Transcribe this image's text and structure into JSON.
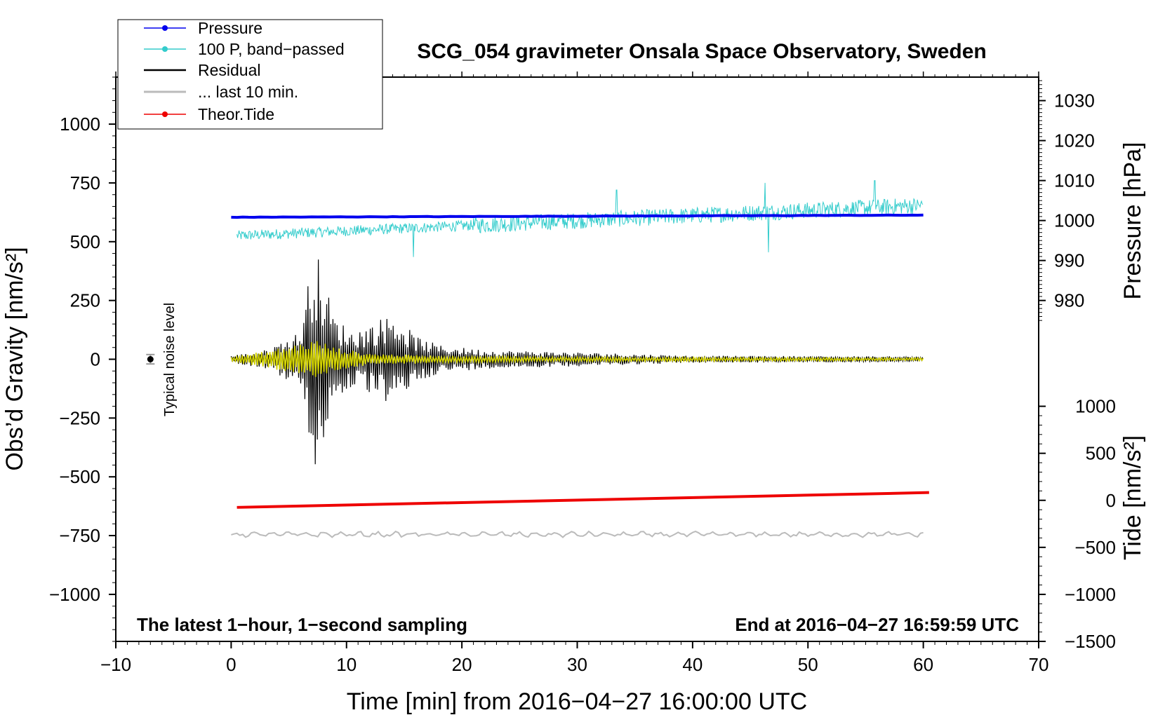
{
  "chart_data": {
    "type": "line",
    "title": "SCG_054 gravimeter Onsala Space Observatory, Sweden",
    "xlabel": "Time [min] from 2016−04−27 16:00:00 UTC",
    "ylabel_left": "Obs’d Gravity [nm/s²]",
    "ylabel_right_top": "Pressure [hPa]",
    "ylabel_right_bottom": "Tide [nm/s²]",
    "xlim": [
      -10,
      70
    ],
    "ylim": [
      -1200,
      1200
    ],
    "x_ticks": [
      -10,
      0,
      10,
      20,
      30,
      40,
      50,
      60,
      70
    ],
    "x_tick_labels": [
      "−10",
      "0",
      "10",
      "20",
      "30",
      "40",
      "50",
      "60",
      "70"
    ],
    "y_ticks": [
      1000,
      750,
      500,
      250,
      0,
      -250,
      -500,
      -750,
      -1000
    ],
    "y_tick_labels": [
      "1000",
      "750",
      "500",
      "250",
      "0",
      "−250",
      "−500",
      "−750",
      "−1000"
    ],
    "pressure_axis": {
      "ticks": [
        1030,
        1020,
        1010,
        1000,
        990,
        980
      ],
      "tick_labels": [
        "1030",
        "1020",
        "1010",
        "1000",
        "990",
        "980"
      ],
      "mapping": {
        "hPa_a": 980,
        "grav_a": 250,
        "hPa_b": 1030,
        "grav_b": 1100
      }
    },
    "tide_axis": {
      "ticks": [
        1000,
        500,
        0,
        -500,
        -1000,
        -1500
      ],
      "tick_labels": [
        "1000",
        "500",
        "0",
        "−500",
        "−1000",
        "−1500"
      ],
      "mapping": {
        "tide_a": 1000,
        "grav_a": -200,
        "tide_b": -1500,
        "grav_b": -1200
      }
    },
    "legend": {
      "placement": "top-left",
      "entries": [
        {
          "label": "Pressure",
          "color": "#0000ee",
          "marker": true
        },
        {
          "label": "100 P, band−passed",
          "color": "#33cccc",
          "marker": true
        },
        {
          "label": "Residual",
          "color": "#000000",
          "marker": false
        },
        {
          "label": "... last 10 min.",
          "color": "#bbbbbb",
          "marker": false
        },
        {
          "label": "Theor.Tide",
          "color": "#ee0000",
          "marker": true
        }
      ]
    },
    "annotations": {
      "bottom_left": "The latest 1−hour, 1−second sampling",
      "bottom_right": "End at 2016−04−27 16:59:59 UTC",
      "noise_label": "Typical noise level"
    },
    "noise_bar": {
      "x": -7,
      "y": 0,
      "half_range": 20
    },
    "series": [
      {
        "name": "Pressure",
        "color": "#0000ee",
        "x_range": [
          0,
          60
        ],
        "start_value": 604,
        "end_value": 613
      },
      {
        "name": "100 P, band−passed",
        "color": "#33cccc",
        "x_range": [
          0.5,
          60
        ],
        "baseline_start": 525,
        "baseline_end": 655,
        "amplitude": 25,
        "spikes": [
          {
            "x": 15.8,
            "value": 435
          },
          {
            "x": 33.4,
            "value": 720
          },
          {
            "x": 46.6,
            "value": 455
          },
          {
            "x": 46.3,
            "value": 750
          },
          {
            "x": 55.8,
            "value": 760
          }
        ]
      },
      {
        "name": "Residual",
        "color": "#000000",
        "x_range": [
          0,
          60
        ],
        "envelope": [
          [
            0,
            15
          ],
          [
            3,
            40
          ],
          [
            6,
            120
          ],
          [
            7.2,
            500
          ],
          [
            8,
            350
          ],
          [
            9,
            180
          ],
          [
            10.5,
            120
          ],
          [
            12,
            150
          ],
          [
            14,
            200
          ],
          [
            16,
            100
          ],
          [
            18,
            60
          ],
          [
            22,
            40
          ],
          [
            30,
            30
          ],
          [
            40,
            15
          ],
          [
            60,
            12
          ]
        ]
      },
      {
        "name": "Residual (yellow overlay)",
        "color": "#d4d400",
        "x_range": [
          0,
          60
        ],
        "envelope": [
          [
            0,
            10
          ],
          [
            3,
            35
          ],
          [
            7.5,
            85
          ],
          [
            9,
            50
          ],
          [
            12,
            25
          ],
          [
            18,
            15
          ],
          [
            30,
            10
          ],
          [
            60,
            6
          ]
        ]
      },
      {
        "name": "... last 10 min.",
        "color": "#bbbbbb",
        "x_range": [
          0,
          60
        ],
        "baseline": -745,
        "amplitude": 12
      },
      {
        "name": "Theor.Tide",
        "color": "#ee0000",
        "x_range": [
          0.5,
          60.5
        ],
        "start_value": -630,
        "end_value": -567
      }
    ]
  }
}
